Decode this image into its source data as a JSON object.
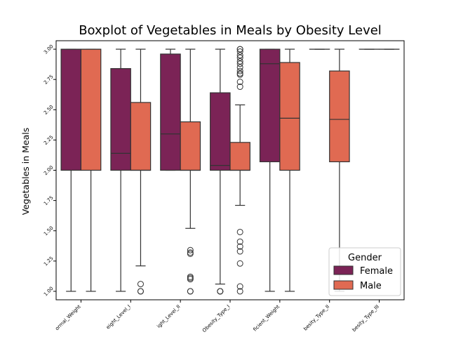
{
  "chart_data": {
    "type": "boxplot",
    "title": "Boxplot of Vegetables in Meals by Obesity Level",
    "xlabel": "",
    "ylabel": "Vegetables in Meals",
    "ylim": [
      0.93,
      3.07
    ],
    "yticks": [
      "1.00",
      "1.25",
      "1.50",
      "1.75",
      "2.00",
      "2.25",
      "2.50",
      "2.75",
      "3.00"
    ],
    "categories": [
      "ormal_Weight",
      "eight_Level_I",
      "ight_Level_II",
      "Obesity_Type_I",
      "ficient_Weight",
      "besity_Type_II",
      "besity_Type_III"
    ],
    "legend": {
      "title": "Gender",
      "position": "lower-right"
    },
    "series": [
      {
        "name": "Female",
        "color": "#7b2356",
        "boxes": [
          {
            "whislo": 1.0,
            "q1": 2.0,
            "med": 3.0,
            "q3": 3.0,
            "whishi": 3.0,
            "fliers": []
          },
          {
            "whislo": 1.0,
            "q1": 2.0,
            "med": 2.14,
            "q3": 2.84,
            "whishi": 3.0,
            "fliers": []
          },
          {
            "whislo": 2.0,
            "q1": 2.0,
            "med": 2.3,
            "q3": 2.96,
            "whishi": 3.0,
            "fliers": []
          },
          {
            "whislo": 1.06,
            "q1": 2.0,
            "med": 2.04,
            "q3": 2.64,
            "whishi": 3.0,
            "fliers": [
              1.0,
              1.0,
              1.0
            ]
          },
          {
            "whislo": 1.0,
            "q1": 2.07,
            "med": 2.88,
            "q3": 3.0,
            "whishi": 3.0,
            "fliers": []
          },
          {
            "whislo": 3.0,
            "q1": 3.0,
            "med": 3.0,
            "q3": 3.0,
            "whishi": 3.0,
            "fliers": []
          },
          {
            "whislo": 3.0,
            "q1": 3.0,
            "med": 3.0,
            "q3": 3.0,
            "whishi": 3.0,
            "fliers": []
          }
        ]
      },
      {
        "name": "Male",
        "color": "#e06a52",
        "boxes": [
          {
            "whislo": 1.0,
            "q1": 2.0,
            "med": 3.0,
            "q3": 3.0,
            "whishi": 3.0,
            "fliers": []
          },
          {
            "whislo": 1.21,
            "q1": 2.0,
            "med": 2.0,
            "q3": 2.56,
            "whishi": 3.0,
            "fliers": [
              1.06,
              1.0,
              1.0
            ]
          },
          {
            "whislo": 1.52,
            "q1": 2.0,
            "med": 2.0,
            "q3": 2.4,
            "whishi": 3.0,
            "fliers": [
              1.34,
              1.32,
              1.31,
              1.12,
              1.11,
              1.1,
              1.0,
              1.0
            ]
          },
          {
            "whislo": 1.71,
            "q1": 2.0,
            "med": 2.0,
            "q3": 2.23,
            "whishi": 2.54,
            "fliers": [
              3.0,
              3.0,
              2.98,
              2.95,
              2.93,
              2.9,
              2.88,
              2.85,
              2.82,
              2.8,
              2.79,
              2.73,
              2.69,
              1.49,
              1.41,
              1.37,
              1.33,
              1.23,
              1.04,
              1.0
            ]
          },
          {
            "whislo": 1.0,
            "q1": 2.0,
            "med": 2.43,
            "q3": 2.89,
            "whishi": 3.0,
            "fliers": []
          },
          {
            "whislo": 1.0,
            "q1": 2.07,
            "med": 2.42,
            "q3": 2.82,
            "whishi": 3.0,
            "fliers": []
          },
          {
            "whislo": 3.0,
            "q1": 3.0,
            "med": 3.0,
            "q3": 3.0,
            "whishi": 3.0,
            "fliers": []
          }
        ]
      }
    ]
  }
}
